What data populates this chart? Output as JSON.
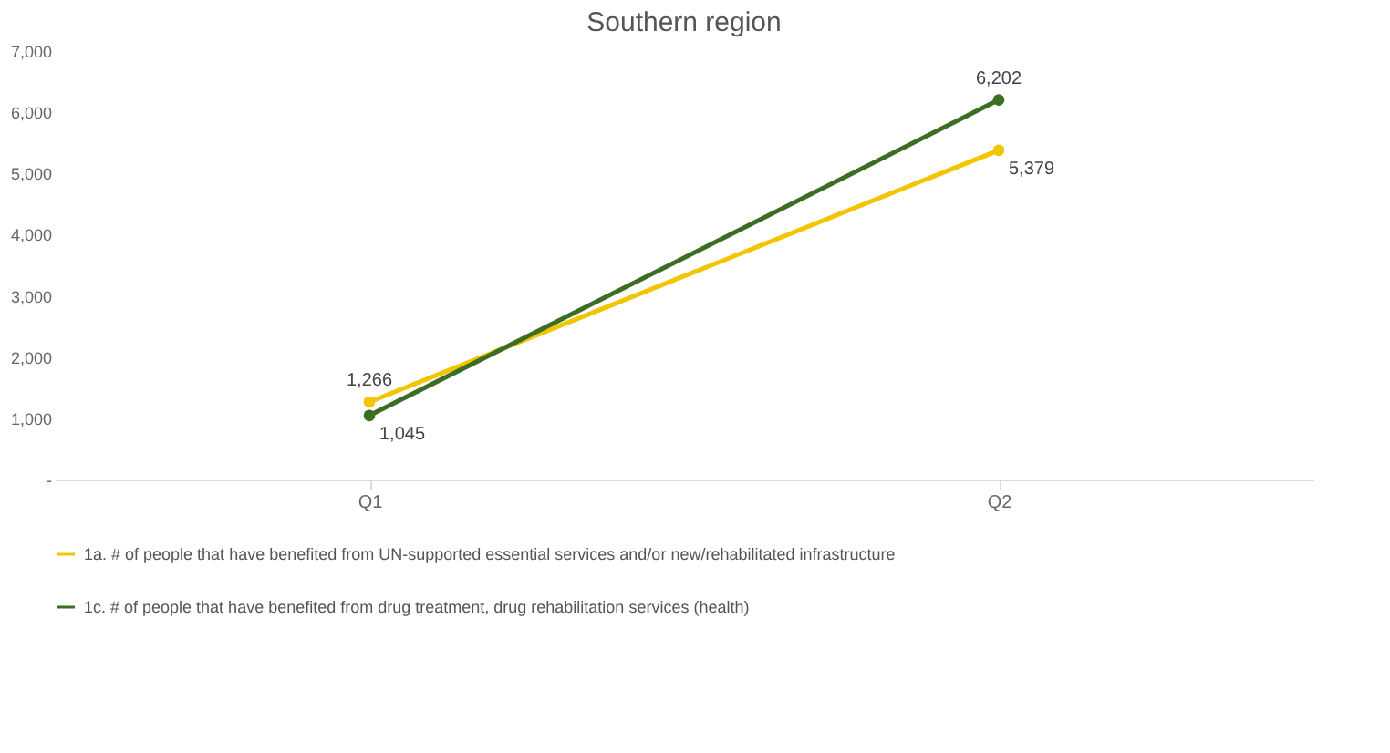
{
  "chart_data": {
    "type": "line",
    "title": "Southern region",
    "categories": [
      "Q1",
      "Q2"
    ],
    "series": [
      {
        "name": "1a. # of people that have benefited from UN-supported essential services and/or new/rehabilitated infrastructure",
        "color": "#f2c500",
        "values": [
          1266,
          5379
        ],
        "value_labels": [
          "1,266",
          "5,379"
        ]
      },
      {
        "name": "1c. # of people that have benefited from drug treatment, drug rehabilitation services (health)",
        "color": "#3b6e22",
        "values": [
          1045,
          6202
        ],
        "value_labels": [
          "1,045",
          "6,202"
        ]
      }
    ],
    "ylim": [
      0,
      7000
    ],
    "yticks": [
      {
        "value": 0,
        "label": "-"
      },
      {
        "value": 1000,
        "label": "1,000"
      },
      {
        "value": 2000,
        "label": "2,000"
      },
      {
        "value": 3000,
        "label": "3,000"
      },
      {
        "value": 4000,
        "label": "4,000"
      },
      {
        "value": 5000,
        "label": "5,000"
      },
      {
        "value": 6000,
        "label": "6,000"
      },
      {
        "value": 7000,
        "label": "7,000"
      }
    ],
    "grid": false,
    "legend": "bottom",
    "marker": "circle",
    "line_style": "solid"
  }
}
